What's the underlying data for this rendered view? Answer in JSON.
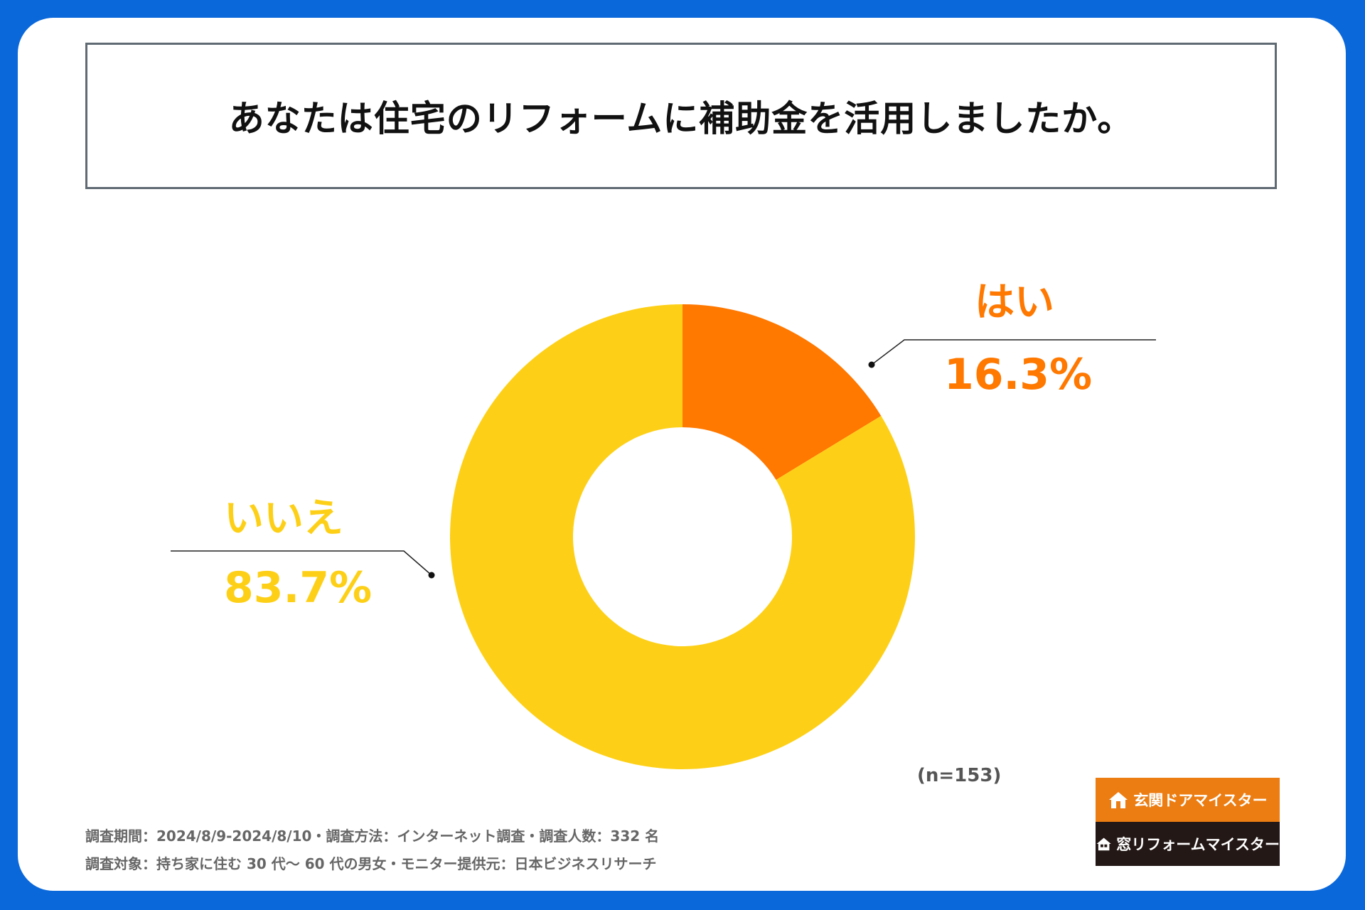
{
  "colors": {
    "frame": "#0a68db",
    "yes": "#ff7800",
    "no": "#fdd017",
    "logo_door_bg": "#ec7d12",
    "logo_window_bg": "#231815"
  },
  "chart_data": {
    "type": "pie",
    "title": "あなたは住宅のリフォームに補助金を活用しましたか。",
    "categories": [
      "はい",
      "いいえ"
    ],
    "values": [
      16.3,
      83.7
    ],
    "value_labels": [
      "16.3%",
      "83.7%"
    ],
    "donut": true,
    "sample_size": "(n=153)"
  },
  "footer": {
    "line1": "調査期間：2024/8/9-2024/8/10・調査方法：インターネット調査・調査人数：332 名",
    "line2": "調査対象：持ち家に住む 30 代～ 60 代の男女・モニター提供元：日本ビジネスリサーチ"
  },
  "logos": {
    "door": {
      "text": "玄関ドアマイスター",
      "icon": "house-icon"
    },
    "window": {
      "text": "窓リフォームマイスター",
      "icon": "house-icon"
    }
  }
}
